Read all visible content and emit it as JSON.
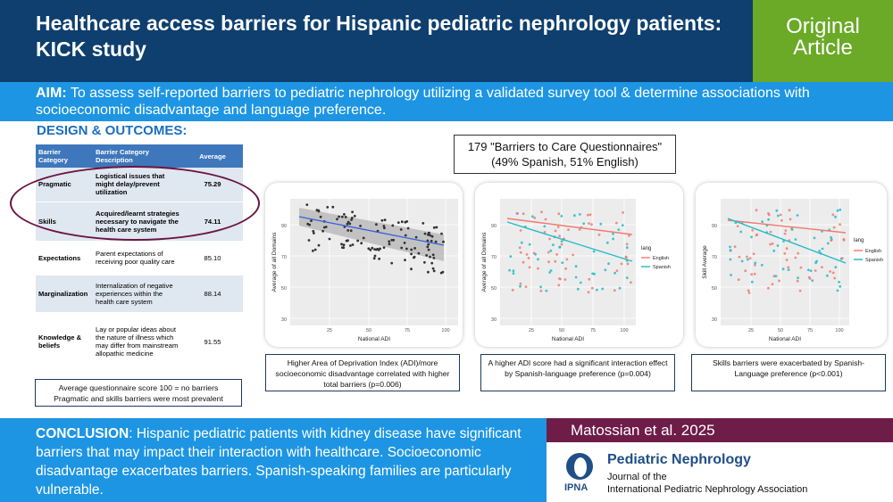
{
  "header": {
    "title": "Healthcare access barriers for Hispanic pediatric nephrology patients: KICK study",
    "badge_line1": "Original",
    "badge_line2": "Article",
    "colors": {
      "navy": "#0e3f6e",
      "green": "#6aaa27",
      "blue": "#1d95e3",
      "maroon": "#6e1c48"
    }
  },
  "aim": {
    "label": "AIM:",
    "text": " To assess self-reported barriers to pediatric nephrology utilizing a validated survey tool & determine associations with socioeconomic disadvantage and language preference."
  },
  "design": {
    "title": "DESIGN & OUTCOMES:",
    "table": {
      "headers": [
        "Barrier Category",
        "Barrier Category Description",
        "Average"
      ],
      "rows": [
        {
          "category": "Pragmatic",
          "description": "Logistical issues that might delay/prevent utilization",
          "average": "75.29"
        },
        {
          "category": "Skills",
          "description": "Acquired/learnt strategies necessary to navigate the health care system",
          "average": "74.11"
        },
        {
          "category": "Expectations",
          "description": "Parent expectations of receiving poor quality care",
          "average": "85.10"
        },
        {
          "category": "Marginalization",
          "description": "Internalization of negative experiences within the health care system",
          "average": "88.14"
        },
        {
          "category": "Knowledge & beliefs",
          "description": "Lay or popular ideas about the nature of illness which may differ from mainstream allopathic medicine",
          "average": "91.55"
        }
      ]
    },
    "note_line1": "Average questionnaire score 100 = no barriers",
    "note_line2": "Pragmatic and skills barriers were most prevalent",
    "survey_line1": "179 \"Barriers to Care Questionnaires\"",
    "survey_line2": "(49% Spanish, 51% English)"
  },
  "charts": [
    {
      "xlabel": "National ADI",
      "ylabel": "Average of all Domains",
      "x_ticks": [
        "25",
        "50",
        "75",
        "100"
      ],
      "y_ticks": [
        "30",
        "50",
        "70",
        "90"
      ],
      "caption": "Higher Area of Deprivation Index (ADI)/more socioeconomic disadvantage correlated with higher total barriers (p=0.006)"
    },
    {
      "xlabel": "National ADI",
      "ylabel": "Average of all Domains",
      "x_ticks": [
        "25",
        "50",
        "75",
        "100"
      ],
      "y_ticks": [
        "30",
        "50",
        "70",
        "90"
      ],
      "legend_title": "lang",
      "legend_items": [
        "English",
        "Spanish"
      ],
      "caption": "A higher ADI score had a significant interaction effect by Spanish-language preference (p=0.004)"
    },
    {
      "xlabel": "National ADI",
      "ylabel": "Skill Average",
      "x_ticks": [
        "25",
        "50",
        "75",
        "100"
      ],
      "y_ticks": [
        "30",
        "50",
        "70",
        "90"
      ],
      "legend_title": "lang",
      "legend_items": [
        "English",
        "Spanish"
      ],
      "caption": "Skills barriers were exacerbated by Spanish-Language preference (p<0.001)"
    }
  ],
  "conclusion": {
    "label": "CONCLUSION",
    "text": ": Hispanic pediatric patients with kidney disease have significant barriers that may impact their interaction with healthcare. Socioeconomic disadvantage exacerbates barriers. Spanish-speaking families are particularly vulnerable."
  },
  "citation": "Matossian et al. 2025",
  "journal": {
    "name": "Pediatric Nephrology",
    "line1": "Journal of the",
    "line2": "International Pediatric Nephrology Association",
    "logo_text": "IPNA"
  }
}
